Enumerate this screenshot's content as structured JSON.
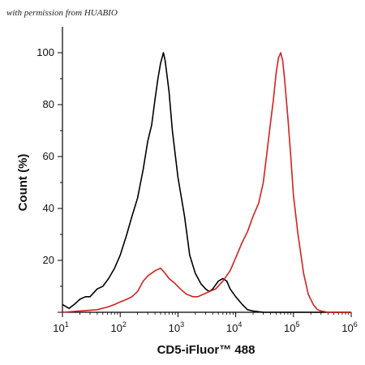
{
  "watermark": "with permission from HUABIO",
  "chart_data": {
    "type": "line",
    "title": "",
    "xlabel": "CD5-iFluor™ 488",
    "ylabel": "Count (%)",
    "x_scale": "log",
    "xlim": [
      10,
      1000000
    ],
    "ylim": [
      0,
      110
    ],
    "x_ticks": [
      {
        "base": "10",
        "exp": "1"
      },
      {
        "base": "10",
        "exp": "2"
      },
      {
        "base": "10",
        "exp": "3"
      },
      {
        "base": "10",
        "exp": "4"
      },
      {
        "base": "10",
        "exp": "5"
      },
      {
        "base": "10",
        "exp": "6"
      }
    ],
    "y_ticks": [
      20,
      40,
      60,
      80,
      100
    ],
    "grid": false,
    "legend": "none",
    "series": [
      {
        "color": "#000000",
        "points": [
          [
            10,
            3
          ],
          [
            13,
            1.5
          ],
          [
            16,
            3
          ],
          [
            20,
            5
          ],
          [
            25,
            6
          ],
          [
            30,
            6
          ],
          [
            40,
            9
          ],
          [
            50,
            10
          ],
          [
            63,
            13
          ],
          [
            80,
            17
          ],
          [
            100,
            22
          ],
          [
            130,
            30
          ],
          [
            160,
            37
          ],
          [
            200,
            44
          ],
          [
            250,
            55
          ],
          [
            300,
            66
          ],
          [
            350,
            72
          ],
          [
            400,
            82
          ],
          [
            450,
            90
          ],
          [
            500,
            96
          ],
          [
            560,
            100
          ],
          [
            600,
            97
          ],
          [
            700,
            85
          ],
          [
            800,
            70
          ],
          [
            1000,
            52
          ],
          [
            1300,
            37
          ],
          [
            1600,
            22
          ],
          [
            2000,
            15
          ],
          [
            2500,
            11
          ],
          [
            3000,
            9
          ],
          [
            3500,
            8
          ],
          [
            4000,
            9
          ],
          [
            5000,
            12
          ],
          [
            6000,
            13
          ],
          [
            7000,
            12
          ],
          [
            8000,
            9
          ],
          [
            10000,
            6
          ],
          [
            13000,
            3
          ],
          [
            16000,
            1
          ],
          [
            20000,
            0.5
          ],
          [
            30000,
            0
          ],
          [
            100000,
            0
          ],
          [
            1000000,
            0
          ]
        ]
      },
      {
        "color": "#d42020",
        "points": [
          [
            10,
            0
          ],
          [
            20,
            0.5
          ],
          [
            40,
            1
          ],
          [
            60,
            2
          ],
          [
            80,
            3
          ],
          [
            100,
            4
          ],
          [
            130,
            5
          ],
          [
            160,
            6
          ],
          [
            200,
            8
          ],
          [
            250,
            12
          ],
          [
            300,
            14
          ],
          [
            400,
            16
          ],
          [
            500,
            17
          ],
          [
            600,
            15
          ],
          [
            700,
            13
          ],
          [
            900,
            11
          ],
          [
            1100,
            9
          ],
          [
            1400,
            7
          ],
          [
            1800,
            6
          ],
          [
            2200,
            6
          ],
          [
            2800,
            7
          ],
          [
            3500,
            8
          ],
          [
            4500,
            9
          ],
          [
            6000,
            12
          ],
          [
            8000,
            16
          ],
          [
            10000,
            21
          ],
          [
            13000,
            27
          ],
          [
            16000,
            31
          ],
          [
            20000,
            37
          ],
          [
            25000,
            42
          ],
          [
            30000,
            50
          ],
          [
            35000,
            62
          ],
          [
            40000,
            73
          ],
          [
            45000,
            82
          ],
          [
            50000,
            92
          ],
          [
            55000,
            98
          ],
          [
            60000,
            100
          ],
          [
            65000,
            97
          ],
          [
            70000,
            90
          ],
          [
            80000,
            75
          ],
          [
            90000,
            60
          ],
          [
            100000,
            45
          ],
          [
            120000,
            30
          ],
          [
            150000,
            15
          ],
          [
            180000,
            7
          ],
          [
            220000,
            3
          ],
          [
            260000,
            1
          ],
          [
            300000,
            0.5
          ],
          [
            400000,
            0
          ],
          [
            1000000,
            0
          ]
        ]
      }
    ]
  }
}
